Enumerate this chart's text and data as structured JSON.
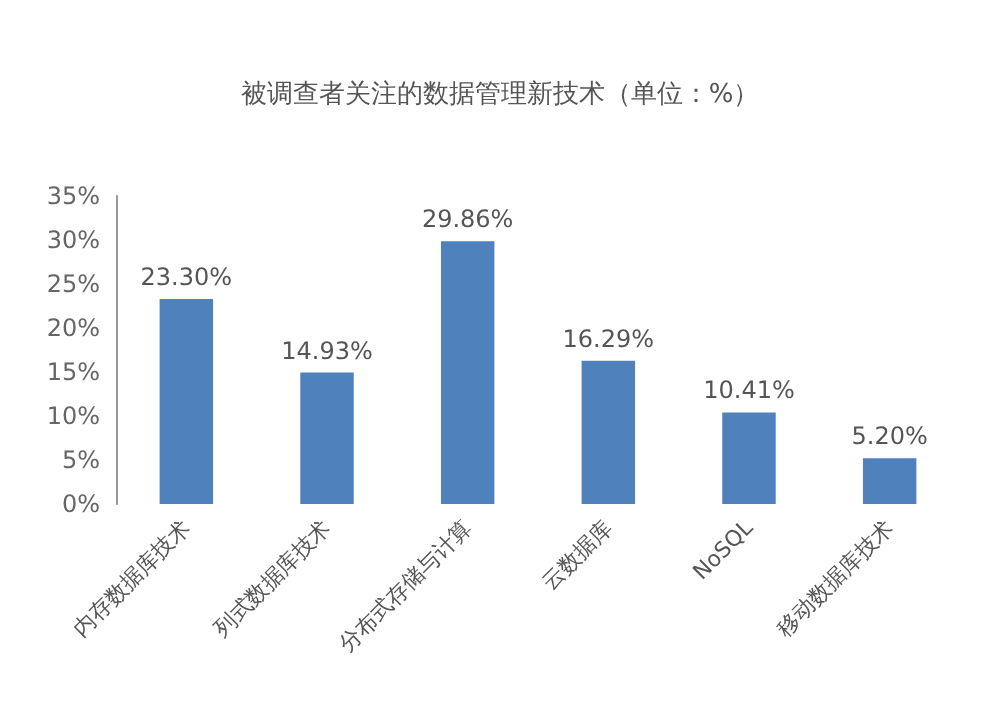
{
  "chart_data": {
    "type": "bar",
    "title": "被调查者关注的数据管理新技术（单位：%）",
    "categories": [
      "内存数据库技术",
      "列式数据库技术",
      "分布式存储与计算",
      "云数据库",
      "NoSQL",
      "移动数据库技术"
    ],
    "values": [
      23.3,
      14.93,
      29.86,
      16.29,
      10.41,
      5.2
    ],
    "value_labels": [
      "23.30%",
      "14.93%",
      "29.86%",
      "16.29%",
      "10.41%",
      "5.20%"
    ],
    "color": "#4f81bd",
    "ylim": [
      0,
      35
    ],
    "yticks": [
      {
        "value": 0,
        "label": "0%"
      },
      {
        "value": 5,
        "label": "5%"
      },
      {
        "value": 10,
        "label": "10%"
      },
      {
        "value": 15,
        "label": "15%"
      },
      {
        "value": 20,
        "label": "20%"
      },
      {
        "value": 25,
        "label": "25%"
      },
      {
        "value": 30,
        "label": "30%"
      },
      {
        "value": 35,
        "label": "35%"
      }
    ],
    "grid": false
  }
}
